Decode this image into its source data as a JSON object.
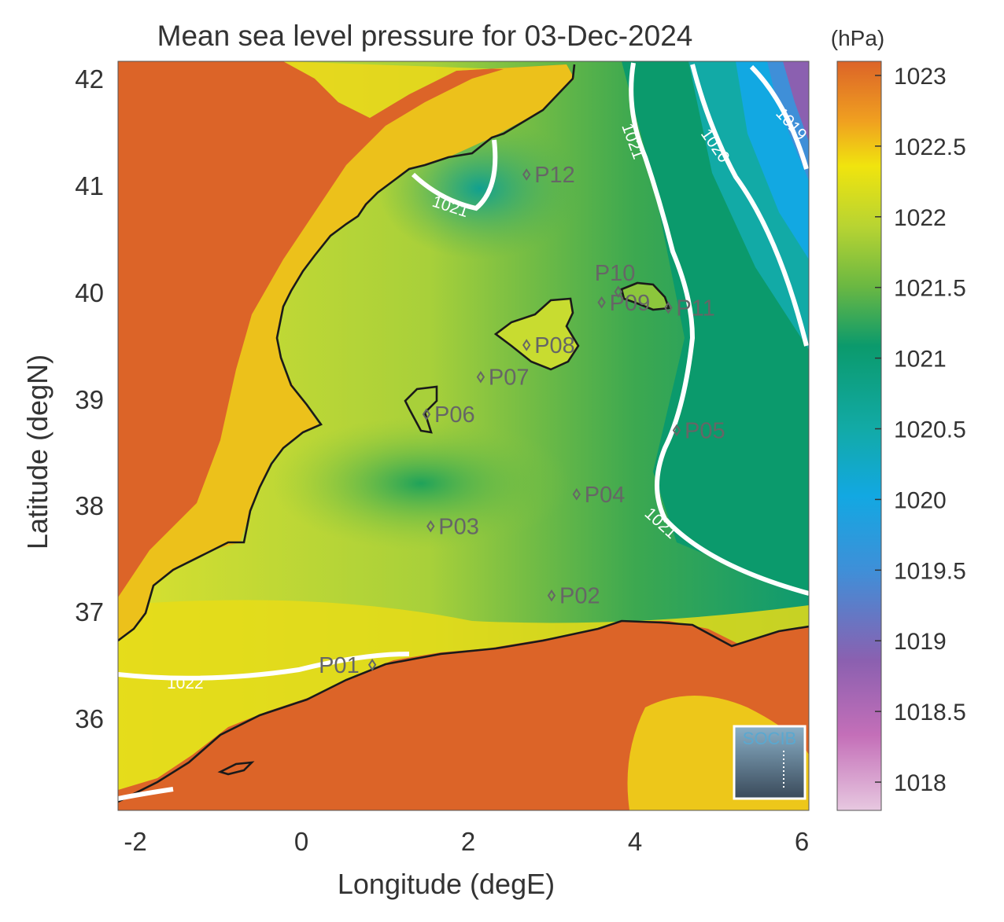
{
  "title": "Mean sea level pressure for 03-Dec-2024",
  "unit_label": "(hPa)",
  "xlabel": "Longitude (degE)",
  "ylabel": "Latitude (degN)",
  "x_ticks": [
    "-2",
    "0",
    "2",
    "4",
    "6"
  ],
  "y_ticks": [
    "42",
    "41",
    "40",
    "39",
    "38",
    "37",
    "36"
  ],
  "colorbar": {
    "ticks": [
      "1023",
      "1022.5",
      "1022",
      "1021.5",
      "1021",
      "1020.5",
      "1020",
      "1019.5",
      "1019",
      "1018.5",
      "1018"
    ],
    "range": [
      1017.8,
      1023.1
    ],
    "colors": [
      "#e7c8e0",
      "#c46fb8",
      "#8b60b0",
      "#3f8fd8",
      "#12a8e2",
      "#12aaa6",
      "#0b9a6c",
      "#8fc83c",
      "#f0e40e",
      "#f0a020",
      "#dc6428"
    ]
  },
  "contour_labels": [
    "1019",
    "1020",
    "1021",
    "1021",
    "1021",
    "1022"
  ],
  "points": [
    {
      "label": "P01",
      "lon": 0.85,
      "lat": 36.5
    },
    {
      "label": "P02",
      "lon": 3.0,
      "lat": 37.15
    },
    {
      "label": "P03",
      "lon": 1.55,
      "lat": 37.8
    },
    {
      "label": "P04",
      "lon": 3.3,
      "lat": 38.1
    },
    {
      "label": "P05",
      "lon": 4.5,
      "lat": 38.7
    },
    {
      "label": "P06",
      "lon": 1.5,
      "lat": 38.85
    },
    {
      "label": "P07",
      "lon": 2.15,
      "lat": 39.2
    },
    {
      "label": "P08",
      "lon": 2.7,
      "lat": 39.5
    },
    {
      "label": "P09",
      "lon": 3.6,
      "lat": 39.9
    },
    {
      "label": "P10",
      "lon": 3.8,
      "lat": 40.0
    },
    {
      "label": "P11",
      "lon": 4.4,
      "lat": 39.85
    },
    {
      "label": "P12",
      "lon": 2.7,
      "lat": 41.1
    }
  ],
  "logo_text": "SOCIB",
  "chart_data": {
    "type": "heatmap",
    "title": "Mean sea level pressure for 03-Dec-2024",
    "xlabel": "Longitude (degE)",
    "ylabel": "Latitude (degN)",
    "xlim": [
      -2.2,
      6.05
    ],
    "ylim": [
      35.12,
      42.2
    ],
    "colorbar_range_hPa": [
      1017.8,
      1023.1
    ],
    "contour_levels_hPa": [
      1019,
      1020,
      1021,
      1022
    ],
    "grid": false
  }
}
